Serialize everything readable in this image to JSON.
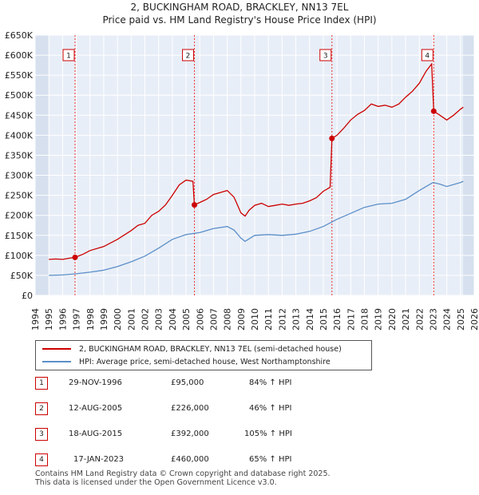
{
  "title_line1": "2, BUCKINGHAM ROAD, BRACKLEY, NN13 7EL",
  "title_line2": "Price paid vs. HM Land Registry's House Price Index (HPI)",
  "legend": {
    "property": "2, BUCKINGHAM ROAD, BRACKLEY, NN13 7EL (semi-detached house)",
    "hpi": "HPI: Average price, semi-detached house, West Northamptonshire"
  },
  "colors": {
    "property": "#cc0000",
    "hpi": "#5b8fc9",
    "grid": "#ffffff",
    "plot_bg": "#e8eef7",
    "shade": "#d6e0ee"
  },
  "sales": [
    {
      "num": "1",
      "date": "29-NOV-1996",
      "price": "£95,000",
      "hpi": "84% ↑ HPI"
    },
    {
      "num": "2",
      "date": "12-AUG-2005",
      "price": "£226,000",
      "hpi": "46% ↑ HPI"
    },
    {
      "num": "3",
      "date": "18-AUG-2015",
      "price": "£392,000",
      "hpi": "105% ↑ HPI"
    },
    {
      "num": "4",
      "date": "17-JAN-2023",
      "price": "£460,000",
      "hpi": "65% ↑ HPI"
    }
  ],
  "footer_line1": "Contains HM Land Registry data © Crown copyright and database right 2025.",
  "footer_line2": "This data is licensed under the Open Government Licence v3.0.",
  "chart_data": {
    "type": "line",
    "title": "2, BUCKINGHAM ROAD, BRACKLEY, NN13 7EL",
    "subtitle": "Price paid vs. HM Land Registry's House Price Index (HPI)",
    "xlabel": "",
    "ylabel": "",
    "xlim": [
      1994,
      2026
    ],
    "ylim": [
      0,
      650000
    ],
    "x_ticks": [
      "1994",
      "1995",
      "1996",
      "1997",
      "1998",
      "1999",
      "2000",
      "2001",
      "2002",
      "2003",
      "2004",
      "2005",
      "2006",
      "2007",
      "2008",
      "2009",
      "2010",
      "2011",
      "2012",
      "2013",
      "2014",
      "2015",
      "2016",
      "2017",
      "2018",
      "2019",
      "2020",
      "2021",
      "2022",
      "2023",
      "2024",
      "2025",
      "2026"
    ],
    "y_ticks": [
      {
        "value": 0,
        "label": "£0"
      },
      {
        "value": 50000,
        "label": "£50K"
      },
      {
        "value": 100000,
        "label": "£100K"
      },
      {
        "value": 150000,
        "label": "£150K"
      },
      {
        "value": 200000,
        "label": "£200K"
      },
      {
        "value": 250000,
        "label": "£250K"
      },
      {
        "value": 300000,
        "label": "£300K"
      },
      {
        "value": 350000,
        "label": "£350K"
      },
      {
        "value": 400000,
        "label": "£400K"
      },
      {
        "value": 450000,
        "label": "£450K"
      },
      {
        "value": 500000,
        "label": "£500K"
      },
      {
        "value": 550000,
        "label": "£550K"
      },
      {
        "value": 600000,
        "label": "£600K"
      },
      {
        "value": 650000,
        "label": "£650K"
      }
    ],
    "series": [
      {
        "name": "2, BUCKINGHAM ROAD, BRACKLEY, NN13 7EL (semi-detached house)",
        "x": [
          1995.0,
          1995.5,
          1996.0,
          1996.5,
          1996.91,
          1997.5,
          1998.0,
          1999.0,
          2000.0,
          2001.0,
          2001.5,
          2002.0,
          2002.5,
          2003.0,
          2003.5,
          2004.0,
          2004.5,
          2005.0,
          2005.5,
          2005.61,
          2006.0,
          2006.5,
          2007.0,
          2007.5,
          2008.0,
          2008.5,
          2009.0,
          2009.3,
          2009.6,
          2010.0,
          2010.5,
          2011.0,
          2011.5,
          2012.0,
          2012.5,
          2013.0,
          2013.5,
          2014.0,
          2014.5,
          2015.0,
          2015.5,
          2015.63,
          2016.0,
          2016.5,
          2017.0,
          2017.5,
          2018.0,
          2018.5,
          2019.0,
          2019.5,
          2020.0,
          2020.5,
          2021.0,
          2021.5,
          2022.0,
          2022.5,
          2022.9,
          2023.05,
          2023.5,
          2024.0,
          2024.5,
          2025.0,
          2025.2
        ],
        "values": [
          90000,
          91000,
          90000,
          93000,
          95000,
          103000,
          112000,
          122000,
          140000,
          162000,
          175000,
          180000,
          200000,
          210000,
          226000,
          250000,
          276000,
          288000,
          285000,
          226000,
          232000,
          240000,
          252000,
          257000,
          262000,
          245000,
          206000,
          198000,
          213000,
          225000,
          230000,
          222000,
          225000,
          228000,
          225000,
          228000,
          230000,
          236000,
          244000,
          260000,
          270000,
          392000,
          400000,
          418000,
          438000,
          452000,
          462000,
          478000,
          472000,
          475000,
          470000,
          478000,
          495000,
          510000,
          530000,
          560000,
          578000,
          460000,
          450000,
          438000,
          450000,
          465000,
          470000
        ]
      },
      {
        "name": "HPI: Average price, semi-detached house, West Northamptonshire",
        "x": [
          1995.0,
          1996.0,
          1997.0,
          1998.0,
          1999.0,
          2000.0,
          2001.0,
          2002.0,
          2003.0,
          2004.0,
          2005.0,
          2006.0,
          2007.0,
          2008.0,
          2008.5,
          2009.0,
          2009.3,
          2010.0,
          2011.0,
          2012.0,
          2013.0,
          2014.0,
          2015.0,
          2016.0,
          2017.0,
          2018.0,
          2019.0,
          2020.0,
          2021.0,
          2022.0,
          2022.5,
          2023.0,
          2023.5,
          2024.0,
          2025.0,
          2025.2
        ],
        "values": [
          50000,
          51000,
          54000,
          58000,
          63000,
          72000,
          84000,
          98000,
          118000,
          140000,
          152000,
          157000,
          167000,
          172000,
          163000,
          143000,
          135000,
          150000,
          152000,
          150000,
          153000,
          160000,
          172000,
          190000,
          205000,
          220000,
          228000,
          230000,
          240000,
          262000,
          272000,
          282000,
          278000,
          272000,
          282000,
          285000
        ]
      }
    ],
    "sales": [
      {
        "label": "1",
        "x": 1996.91,
        "value": 95000
      },
      {
        "label": "2",
        "x": 2005.61,
        "value": 226000
      },
      {
        "label": "3",
        "x": 2015.63,
        "value": 392000
      },
      {
        "label": "4",
        "x": 2023.05,
        "value": 460000
      }
    ],
    "shaded_ranges": [
      [
        1994,
        1995.0
      ],
      [
        2025.2,
        2026
      ]
    ]
  }
}
